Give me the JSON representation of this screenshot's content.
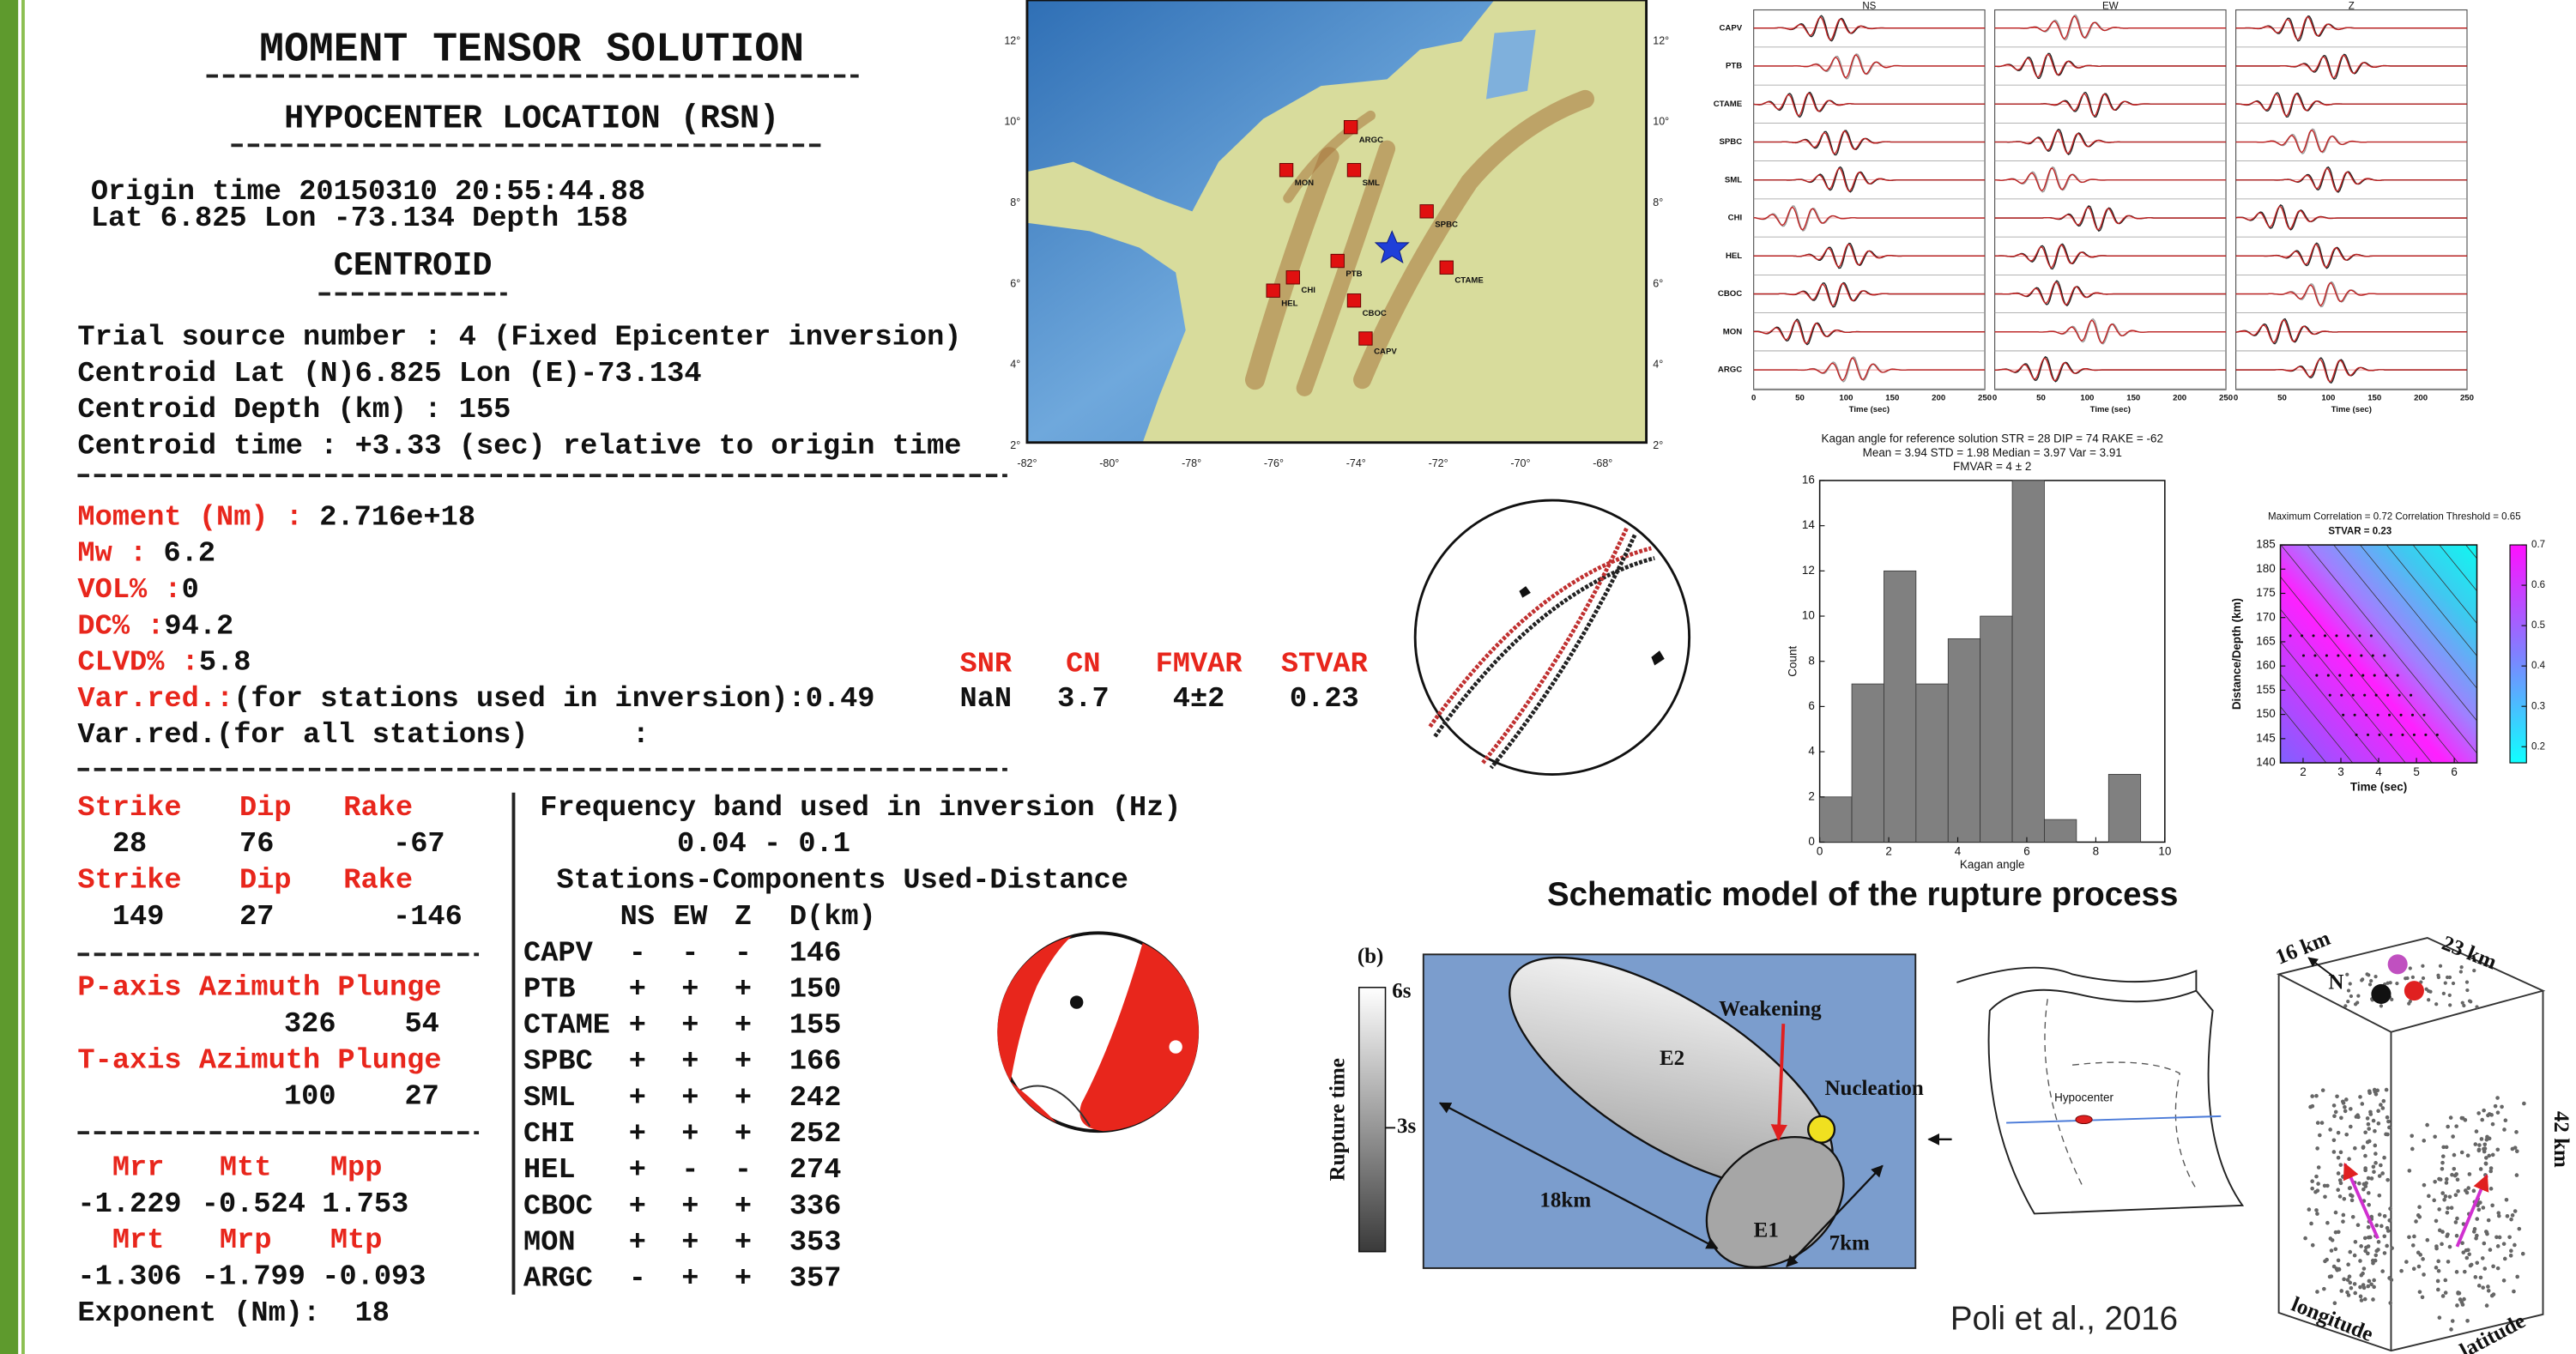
{
  "solution": {
    "title": "MOMENT TENSOR SOLUTION",
    "hypocenter_heading": "HYPOCENTER LOCATION (RSN)",
    "origin_time": "Origin time 20150310 20:55:44.88",
    "origin_location": "Lat 6.825 Lon -73.134 Depth 158",
    "centroid_heading": "CENTROID",
    "centroid_lines": [
      "Trial source number : 4 (Fixed Epicenter inversion)",
      "Centroid Lat (N)6.825 Lon (E)-73.134",
      "Centroid Depth (km) : 155",
      "Centroid time : +3.33 (sec) relative to origin time"
    ],
    "parameters": [
      {
        "label": "Moment (Nm) :",
        "value": "2.716e+18"
      },
      {
        "label": "Mw :",
        "value": "6.2"
      },
      {
        "label": "VOL% :",
        "value": "0"
      },
      {
        "label": "DC% :",
        "value": "94.2"
      },
      {
        "label": "CLVD% :",
        "value": "5.8"
      },
      {
        "label": "Var.red.:",
        "value": "(for stations used in inversion):0.49"
      }
    ],
    "var_red_all": "Var.red.(for all stations)      :",
    "quality": {
      "headers": [
        "SNR",
        "CN",
        "FMVAR",
        "STVAR"
      ],
      "values": [
        "NaN",
        "3.7",
        "4±2",
        "0.23"
      ]
    },
    "nodal_planes": {
      "headers": [
        "Strike",
        "Dip",
        "Rake"
      ],
      "planes": [
        [
          "28",
          "76",
          "-67"
        ],
        [
          "149",
          "27",
          "-146"
        ]
      ]
    },
    "principal_axes": [
      {
        "header": "P-axis Azimuth Plunge",
        "values": [
          "326",
          "54"
        ]
      },
      {
        "header": "T-axis Azimuth Plunge",
        "values": [
          "100",
          "27"
        ]
      }
    ],
    "tensor": [
      {
        "headers": [
          "Mrr",
          "Mtt",
          "Mpp"
        ],
        "values": [
          "-1.229",
          "-0.524",
          "1.753"
        ]
      },
      {
        "headers": [
          "Mrt",
          "Mrp",
          "Mtp"
        ],
        "values": [
          "-1.306",
          "-1.799",
          "-0.093"
        ]
      }
    ],
    "exponent": "Exponent (Nm):  18",
    "frequency_heading": "Frequency band used in inversion (Hz)",
    "frequency_band": "0.04 - 0.1",
    "stations_heading": "Stations-Components Used-Distance",
    "station_headers": [
      "NS",
      "EW",
      "Z",
      "D(km)"
    ],
    "stations": [
      [
        "CAPV",
        "-",
        "-",
        "-",
        "146"
      ],
      [
        "PTB",
        "+",
        "+",
        "+",
        "150"
      ],
      [
        "CTAME",
        "+",
        "+",
        "+",
        "155"
      ],
      [
        "SPBC",
        "+",
        "+",
        "+",
        "166"
      ],
      [
        "SML",
        "+",
        "+",
        "+",
        "242"
      ],
      [
        "CHI",
        "+",
        "+",
        "+",
        "252"
      ],
      [
        "HEL",
        "+",
        "-",
        "-",
        "274"
      ],
      [
        "CBOC",
        "+",
        "+",
        "+",
        "336"
      ],
      [
        "MON",
        "+",
        "+",
        "+",
        "353"
      ],
      [
        "ARGC",
        "-",
        "+",
        "+",
        "357"
      ]
    ]
  },
  "map": {
    "lat_labels": [
      "12°",
      "10°",
      "8°",
      "6°",
      "4°",
      "2°"
    ],
    "lon_labels": [
      "-82°",
      "-80°",
      "-78°",
      "-76°",
      "-74°",
      "-72°",
      "-70°",
      "-68°"
    ],
    "stations": [
      "ARGC",
      "MON",
      "SML",
      "SPBC",
      "PTB",
      "CTAME",
      "CHI",
      "HEL",
      "CBOC",
      "CAPV"
    ]
  },
  "waveforms": {
    "components": [
      "NS",
      "EW",
      "Z"
    ],
    "stations": [
      "CAPV",
      "PTB",
      "CTAME",
      "SPBC",
      "SML",
      "CHI",
      "HEL",
      "CBOC",
      "MON",
      "ARGC"
    ],
    "time_ticks": [
      "0",
      "50",
      "100",
      "150",
      "200",
      "250"
    ],
    "time_label": "Time (sec)"
  },
  "chart_data": [
    {
      "type": "histogram",
      "title": [
        "Kagan angle for reference solution STR = 28 DIP = 74 RAKE = -62",
        "Mean = 3.94 STD = 1.98 Median = 3.97 Var = 3.91"
      ],
      "annotation": "FMVAR = 4 ± 2",
      "bins": [
        0,
        0.93,
        1.86,
        2.79,
        3.72,
        4.65,
        5.58,
        6.51,
        7.44,
        8.37,
        9.3
      ],
      "values": [
        2,
        7,
        12,
        7,
        9,
        10,
        16,
        1,
        0,
        3
      ],
      "color": "#808080",
      "xlim": [
        0,
        10
      ],
      "ylim": [
        0,
        16
      ],
      "xticks": [
        0,
        2,
        4,
        6,
        8,
        10
      ],
      "yticks": [
        0,
        2,
        4,
        6,
        8,
        10,
        12,
        14,
        16
      ],
      "x_label": "Kagan angle",
      "y_label": "Count"
    },
    {
      "type": "contour",
      "title": "Maximum Correlation = 0.72 Correlation Threshold = 0.65",
      "annotation": "STVAR = 0.23",
      "xlim": [
        1.4,
        6.6
      ],
      "ylim": [
        140,
        185
      ],
      "xticks": [
        2,
        3,
        4,
        5,
        6
      ],
      "yticks": [
        140,
        145,
        150,
        155,
        160,
        165,
        170,
        175,
        180,
        185
      ],
      "colorbar_lim": [
        0.16,
        0.7
      ],
      "colorbar_ticks": [
        0.2,
        0.3,
        0.4,
        0.5,
        0.6,
        0.7
      ],
      "x_label": "Time (sec)",
      "y_label": "Distance/Depth (km)"
    }
  ],
  "schematic": {
    "title": "Schematic model of the rupture process",
    "panel_label": "(b)",
    "colorbar_label": "Rupture time",
    "colorbar_ticks": [
      "6s",
      "3s"
    ],
    "E2": "E2",
    "E1": "E1",
    "weakening": "Weakening",
    "nucleation": "Nucleation",
    "length": "18km",
    "width": "7km",
    "hypocenter": "Hypocenter",
    "box_dims": [
      "16 km",
      "23 km",
      "42 km"
    ],
    "north": "N",
    "box_axes": [
      "longitude",
      "latitude"
    ],
    "citation": "Poli et al., 2016"
  }
}
